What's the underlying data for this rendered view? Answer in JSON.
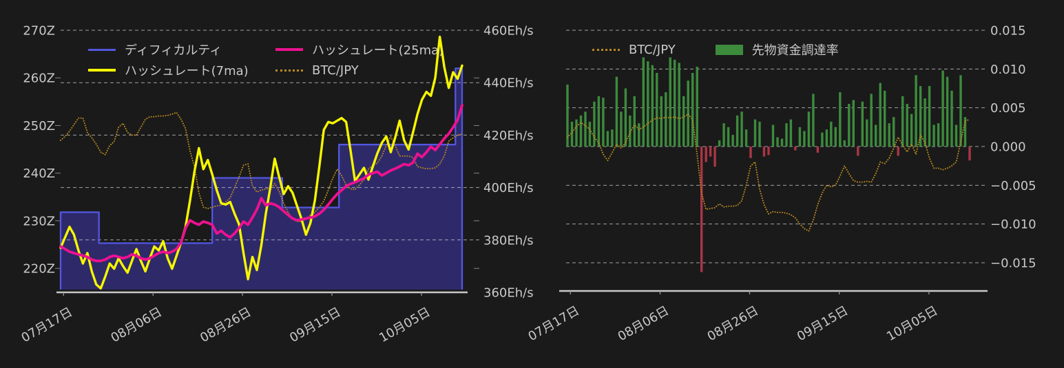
{
  "colors": {
    "background": "#1a1a1a",
    "axis_text": "#c9c9c9",
    "grid": "#d0d0d0",
    "baseline": "#c9c9c9",
    "difficulty_line": "#5357e0",
    "difficulty_fill": "#2e2a6a",
    "hashrate_7ma": "#f6f600",
    "hashrate_25ma": "#ee1190",
    "btc_jpy": "#b9891f",
    "funding_positive": "#3d8b3d",
    "funding_negative": "#aa3645"
  },
  "chart_data": [
    {
      "id": "difficulty-hashrate",
      "type": "line",
      "title": "",
      "legend_position": "upper-left-inside",
      "grid": true,
      "x_tick_labels": [
        "07月17日",
        "08月06日",
        "08月26日",
        "09月15日",
        "10月05日"
      ],
      "x_tick_days": [
        0.66,
        20.73,
        40.76,
        60.82,
        80.89
      ],
      "n_points": 91,
      "y_axis_left": {
        "unit": "Z",
        "ticks": [
          270,
          260,
          250,
          240,
          230,
          220
        ],
        "labels": [
          "270Z",
          "260Z",
          "250Z",
          "240Z",
          "230Z",
          "220Z"
        ],
        "range": [
          214.9,
          270
        ]
      },
      "y_axis_right": {
        "unit": "Eh/s",
        "ticks": [
          460,
          440,
          420,
          400,
          380,
          360
        ],
        "labels": [
          "460Eh/s",
          "440Eh/s",
          "420Eh/s",
          "400Eh/s",
          "380Eh/s",
          "360Eh/s"
        ],
        "range": [
          360,
          460
        ]
      },
      "series": [
        {
          "name": "ディフィカルティ",
          "type": "step-area",
          "axis": "left",
          "unit": "Z",
          "steps": [
            {
              "from": 0,
              "to": 8.6,
              "value": 231.8
            },
            {
              "from": 8.6,
              "to": 34,
              "value": 225.3
            },
            {
              "from": 34,
              "to": 49.7,
              "value": 239
            },
            {
              "from": 49.7,
              "to": 62.4,
              "value": 232.8
            },
            {
              "from": 62.4,
              "to": 88.5,
              "value": 246
            },
            {
              "from": 88.5,
              "to": 90,
              "value": 262
            }
          ]
        },
        {
          "name": "ハッシュレート(7ma)",
          "type": "line",
          "axis": "right",
          "unit": "Eh/s",
          "values": [
            377,
            381,
            385,
            382,
            376,
            371,
            375,
            368,
            363,
            361.5,
            366,
            371,
            369,
            373,
            370,
            367.5,
            372,
            376.5,
            372,
            368,
            373,
            377.5,
            376,
            379.5,
            373,
            369,
            374,
            379,
            385,
            395,
            406,
            415,
            407,
            410.5,
            405,
            399,
            394,
            393.5,
            394.5,
            390,
            386,
            375,
            365,
            373.5,
            368.5,
            378,
            390,
            400,
            411,
            404,
            397.5,
            400.5,
            398,
            393,
            388,
            382,
            386.5,
            395,
            408,
            422,
            425,
            424.5,
            425.5,
            426.5,
            425,
            414,
            402.5,
            405,
            407.5,
            403,
            408,
            413,
            417,
            419.5,
            413.5,
            419,
            425.5,
            418,
            414.5,
            421,
            428,
            433.5,
            436.5,
            435,
            442,
            457.5,
            446,
            438,
            444,
            441.5,
            446.5
          ]
        },
        {
          "name": "ハッシュレート(25ma)",
          "type": "line",
          "axis": "right",
          "unit": "Eh/s",
          "values": [
            377.5,
            376.5,
            375.5,
            375,
            374.5,
            374,
            373.5,
            372.5,
            372,
            372,
            372.5,
            373.5,
            374,
            373.5,
            373,
            373.5,
            374.5,
            374,
            373,
            372.5,
            373,
            374,
            375,
            375.5,
            375,
            375.5,
            376.5,
            379,
            384.5,
            387.5,
            386.5,
            385.8,
            387,
            386.5,
            385.8,
            382.5,
            383.5,
            382,
            381,
            382.5,
            384.5,
            387,
            385.8,
            388.5,
            391.6,
            395.9,
            393.2,
            394,
            393.5,
            392.5,
            391,
            389.5,
            388.2,
            387.5,
            387.8,
            388.2,
            388.5,
            389,
            390,
            391.5,
            393.5,
            395.6,
            397.5,
            399,
            400.5,
            401.4,
            402,
            402.8,
            403.5,
            404.9,
            405.5,
            406,
            404.6,
            405.5,
            406.5,
            407.2,
            408,
            408.9,
            408.5,
            409.5,
            412.9,
            411.6,
            413.5,
            415.6,
            414.3,
            416.5,
            418.7,
            420.5,
            423,
            425.8,
            431.4
          ]
        },
        {
          "name": "BTC/JPY",
          "type": "dotted-line",
          "axis": "hidden-overlay-right-scale",
          "values": [
            418,
            419.5,
            421.5,
            424,
            426.5,
            426.5,
            421,
            419,
            416.5,
            413.5,
            412.5,
            416,
            417.5,
            423,
            424.5,
            421,
            420,
            420,
            423,
            426,
            427,
            427,
            427.3,
            427.3,
            427.5,
            428,
            428.6,
            426,
            422.5,
            414,
            408,
            398,
            392.5,
            392,
            392.5,
            393,
            393.2,
            394.5,
            396,
            400,
            404,
            408.5,
            409,
            400.5,
            398.3,
            399,
            399.5,
            399.5,
            401.5,
            398.5,
            394,
            390.5,
            388,
            387,
            387,
            388,
            389.5,
            390.5,
            392.5,
            394.8,
            399,
            403.5,
            407,
            404.5,
            401,
            399.5,
            399.2,
            401,
            403,
            407,
            408.5,
            409.3,
            412,
            416,
            419.5,
            416,
            412,
            412,
            412,
            411.5,
            408,
            407.5,
            407.2,
            407.2,
            407.5,
            409,
            412,
            417.7,
            419,
            420,
            420.4
          ]
        }
      ]
    },
    {
      "id": "btcjpy-funding-rate",
      "type": "bar",
      "title": "",
      "legend_position": "upper-left-inside",
      "grid": true,
      "x_tick_labels": [
        "07月17日",
        "08月06日",
        "08月26日",
        "09月15日",
        "10月05日"
      ],
      "x_tick_days": [
        0.66,
        20.73,
        40.76,
        60.82,
        80.89
      ],
      "n_points": 91,
      "y_axis_right": {
        "unit": "",
        "ticks": [
          0.015,
          0.01,
          0.005,
          0.0,
          -0.005,
          -0.01,
          -0.015
        ],
        "labels": [
          "0.015",
          "0.010",
          "0.005",
          "0.000",
          "−0.005",
          "−0.010",
          "−0.015"
        ],
        "range": [
          -0.01864,
          0.015
        ]
      },
      "series": [
        {
          "name": "先物資金調達率",
          "type": "bar",
          "axis": "right",
          "values": [
            0.008,
            0.0032,
            0.0035,
            0.004,
            0.0045,
            0.0032,
            0.0058,
            0.0065,
            0.0063,
            0.002,
            0.0022,
            0.009,
            0.0045,
            0.0075,
            0.004,
            0.0065,
            0.003,
            0.0115,
            0.011,
            0.0105,
            0.0095,
            0.0065,
            0.007,
            0.0115,
            0.0112,
            0.0108,
            0.0065,
            0.0085,
            0.0095,
            0.0103,
            -0.0162,
            -0.002,
            -0.0013,
            -0.0026,
            0.0008,
            0.003,
            0.0025,
            0.0015,
            0.004,
            0.0045,
            0.0022,
            -0.0015,
            0.0035,
            0.0032,
            -0.0013,
            -0.0011,
            0.0028,
            0.0012,
            0.001,
            0.003,
            0.0035,
            -0.0005,
            0.0025,
            0.002,
            0.0045,
            0.0068,
            -0.0008,
            0.0018,
            0.0022,
            0.0032,
            0.0025,
            0.007,
            0.0008,
            0.0055,
            0.006,
            -0.0012,
            0.0058,
            0.0035,
            0.0068,
            0.0028,
            0.0082,
            0.0072,
            0.003,
            0.0038,
            -0.0012,
            0.0065,
            0.0055,
            0.0042,
            0.0092,
            0.0078,
            0.0062,
            0.0078,
            0.0028,
            0.003,
            0.0098,
            0.009,
            0.0072,
            0.0028,
            0.0092,
            0.0038,
            -0.0018
          ]
        },
        {
          "name": "BTC/JPY",
          "type": "dotted-line",
          "axis": "hidden-overlay-right-scale",
          "values": [
            0.0012,
            0.0018,
            0.0026,
            0.0031,
            0.0027,
            0.0022,
            0.0012,
            0.0005,
            -0.001,
            -0.0018,
            -0.0008,
            0.0003,
            -0.0002,
            0.0005,
            0.0018,
            0.0028,
            0.0022,
            0.0025,
            0.003,
            0.0034,
            0.0037,
            0.0036,
            0.0038,
            0.0037,
            0.0038,
            0.0036,
            0.0038,
            0.0042,
            0.0035,
            -0.001,
            -0.006,
            -0.0081,
            -0.008,
            -0.0079,
            -0.0074,
            -0.0078,
            -0.0077,
            -0.0077,
            -0.0076,
            -0.007,
            -0.005,
            -0.0025,
            -0.002,
            -0.0055,
            -0.0075,
            -0.0087,
            -0.0084,
            -0.0085,
            -0.0085,
            -0.0086,
            -0.0088,
            -0.0092,
            -0.01,
            -0.0106,
            -0.0109,
            -0.0095,
            -0.0075,
            -0.006,
            -0.005,
            -0.0052,
            -0.005,
            -0.0038,
            -0.0025,
            -0.0035,
            -0.0044,
            -0.0046,
            -0.0046,
            -0.0045,
            -0.0046,
            -0.0035,
            -0.002,
            -0.0022,
            -0.0015,
            -0.0002,
            0.0012,
            0.0002,
            -0.0007,
            0.0003,
            -0.001,
            0.0015,
            0.0005,
            -0.0015,
            -0.0028,
            -0.0028,
            -0.003,
            -0.0028,
            -0.0025,
            -0.002,
            0.0006,
            0.0033,
            0.0035
          ]
        }
      ]
    }
  ]
}
